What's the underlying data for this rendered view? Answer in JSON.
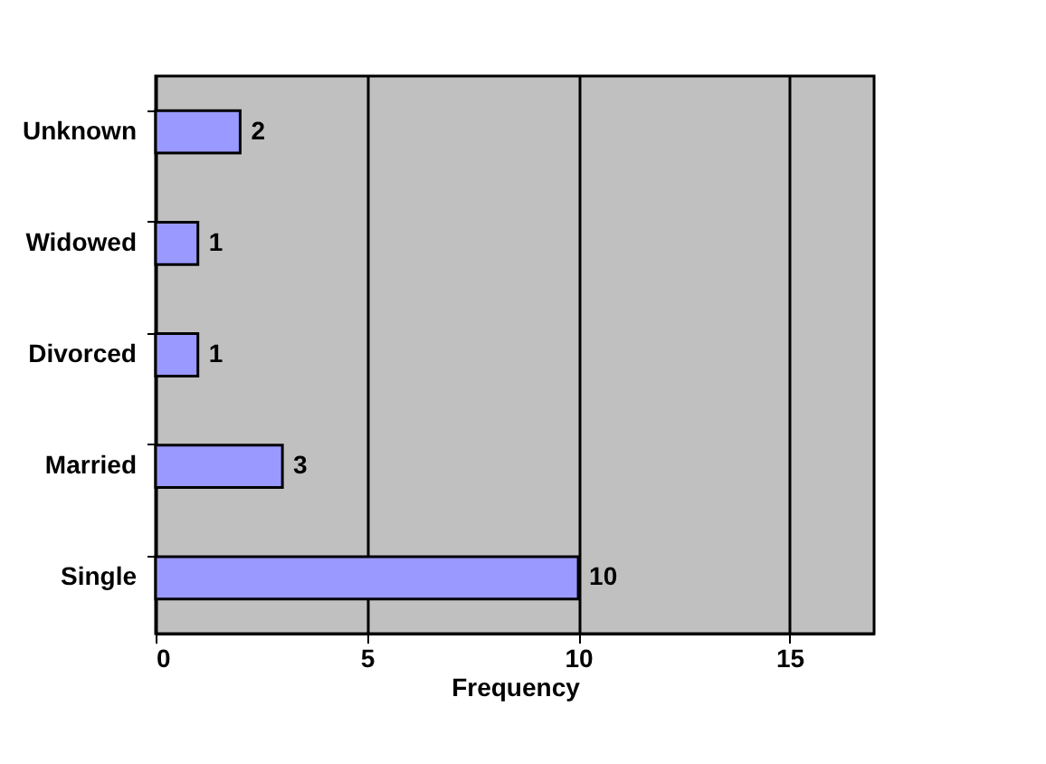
{
  "chart_data": {
    "type": "bar",
    "orientation": "horizontal",
    "xlabel": "Frequency",
    "categories": [
      "Unknown",
      "Widowed",
      "Divorced",
      "Married",
      "Single"
    ],
    "values": [
      2,
      1,
      1,
      3,
      10
    ],
    "color": "#9999ff",
    "xlim": [
      0,
      17
    ],
    "xticks": [
      0,
      5,
      10,
      15
    ],
    "grid": "x",
    "data_labels": true
  }
}
